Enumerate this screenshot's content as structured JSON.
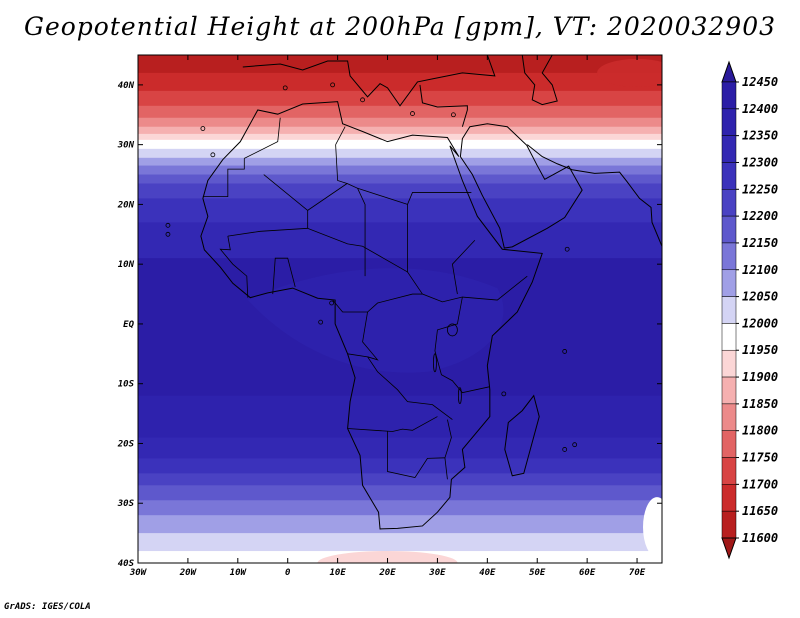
{
  "title": "Geopotential Height at 200hPa [gpm], VT: 2020032903",
  "footer": "GrADS: IGES/COLA",
  "map": {
    "lon_range": [
      -30,
      75
    ],
    "lat_range": [
      -40,
      45
    ],
    "lon_ticks": [
      {
        "value": -30,
        "label": "30W"
      },
      {
        "value": -20,
        "label": "20W"
      },
      {
        "value": -10,
        "label": "10W"
      },
      {
        "value": 0,
        "label": "0"
      },
      {
        "value": 10,
        "label": "10E"
      },
      {
        "value": 20,
        "label": "20E"
      },
      {
        "value": 30,
        "label": "30E"
      },
      {
        "value": 40,
        "label": "40E"
      },
      {
        "value": 50,
        "label": "50E"
      },
      {
        "value": 60,
        "label": "60E"
      },
      {
        "value": 70,
        "label": "70E"
      }
    ],
    "lat_ticks": [
      {
        "value": 40,
        "label": "40N"
      },
      {
        "value": 30,
        "label": "30N"
      },
      {
        "value": 20,
        "label": "20N"
      },
      {
        "value": 10,
        "label": "10N"
      },
      {
        "value": 0,
        "label": "EQ"
      },
      {
        "value": -10,
        "label": "10S"
      },
      {
        "value": -20,
        "label": "20S"
      },
      {
        "value": -30,
        "label": "30S"
      },
      {
        "value": -40,
        "label": "40S"
      }
    ]
  },
  "colorbar": {
    "levels": [
      12450,
      12400,
      12350,
      12300,
      12250,
      12200,
      12150,
      12100,
      12050,
      12000,
      11950,
      11900,
      11850,
      11800,
      11750,
      11700,
      11650,
      11600
    ],
    "colors": [
      "#2a1a9a",
      "#2b1da6",
      "#2e22ad",
      "#3328b3",
      "#3b32bb",
      "#4a42c3",
      "#5e58cc",
      "#7a76d8",
      "#a09fe6",
      "#d4d4f4",
      "#ffffff",
      "#fbd6d6",
      "#f5b0b0",
      "#ec8a8a",
      "#e26464",
      "#d84444",
      "#cb2b2b",
      "#b81f1f",
      "#a01818"
    ]
  }
}
